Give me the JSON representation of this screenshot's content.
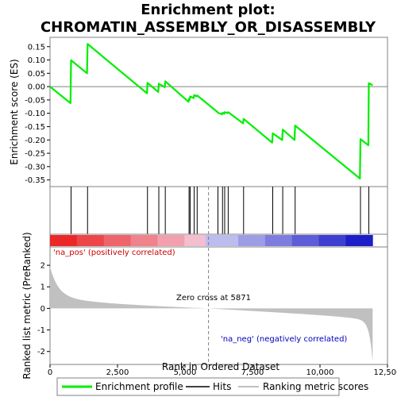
{
  "chart_data": {
    "type": "line",
    "title_line1": "Enrichment plot:",
    "title_line2": "CHROMATIN_ASSEMBLY_OR_DISASSEMBLY",
    "xlabel": "Rank in Ordered Dataset",
    "es_ylabel": "Enrichment score (ES)",
    "metric_ylabel": "Ranked list metric (PreRanked)",
    "xlim": [
      0,
      12500
    ],
    "es_ylim": [
      -0.375,
      0.185
    ],
    "metric_ylim": [
      -2.6,
      2.85
    ],
    "x_ticks": [
      0,
      2500,
      5000,
      7500,
      10000,
      12500
    ],
    "x_tick_labels": [
      "0",
      "2,500",
      "5,000",
      "7,500",
      "10,000",
      "12,500"
    ],
    "es_ticks": [
      0.15,
      0.1,
      0.05,
      0.0,
      -0.05,
      -0.1,
      -0.15,
      -0.2,
      -0.25,
      -0.3,
      -0.35
    ],
    "es_tick_labels": [
      "0.15",
      "0.10",
      "0.05",
      "0.00",
      "-0.05",
      "-0.10",
      "-0.15",
      "-0.20",
      "-0.25",
      "-0.30",
      "-0.35"
    ],
    "metric_ticks": [
      2,
      1,
      0,
      -1,
      -2
    ],
    "metric_tick_labels": [
      "2",
      "1",
      "0",
      "-1",
      "-2"
    ],
    "total_ranks": 11950,
    "zero_cross": 5871,
    "zero_cross_label": "Zero cross at 5871",
    "pos_label": "'na_pos' (positively correlated)",
    "neg_label": "'na_neg' (negatively correlated)",
    "hits": [
      780,
      1390,
      3610,
      4030,
      4270,
      5150,
      5190,
      5340,
      5450,
      6220,
      6390,
      6470,
      6600,
      7170,
      8250,
      8620,
      9080,
      11500,
      11810
    ],
    "es_profile": {
      "x": [
        0,
        760,
        780,
        1370,
        1390,
        3590,
        3610,
        4010,
        4030,
        4250,
        4270,
        5130,
        5150,
        5170,
        5190,
        5320,
        5340,
        5430,
        5450,
        6200,
        6220,
        6370,
        6390,
        6450,
        6470,
        6580,
        6600,
        7150,
        7170,
        8230,
        8250,
        8600,
        8620,
        9060,
        9080,
        11480,
        11500,
        11790,
        11810,
        11950
      ],
      "y": [
        0.0,
        -0.062,
        0.099,
        0.05,
        0.16,
        -0.025,
        0.014,
        -0.02,
        0.011,
        -0.002,
        0.02,
        -0.057,
        -0.045,
        -0.05,
        -0.037,
        -0.043,
        -0.032,
        -0.036,
        -0.033,
        -0.095,
        -0.098,
        -0.104,
        -0.098,
        -0.102,
        -0.096,
        -0.099,
        -0.096,
        -0.138,
        -0.121,
        -0.21,
        -0.175,
        -0.2,
        -0.161,
        -0.2,
        -0.146,
        -0.345,
        -0.197,
        -0.22,
        0.013,
        0.005
      ]
    },
    "colors": {
      "profile": "#00ee00",
      "hits": "#000000",
      "metric_fill": "#c0c0c0",
      "zero_line": "#808080",
      "pos_text": "#cc0000",
      "neg_text": "#0000bb",
      "legend_line": "#aaaaaa"
    },
    "legend": [
      {
        "label": "Enrichment profile",
        "color": "#00ee00"
      },
      {
        "label": "Hits",
        "color": "#000000"
      },
      {
        "label": "Ranking metric scores",
        "color": "#aaaaaa"
      }
    ]
  }
}
